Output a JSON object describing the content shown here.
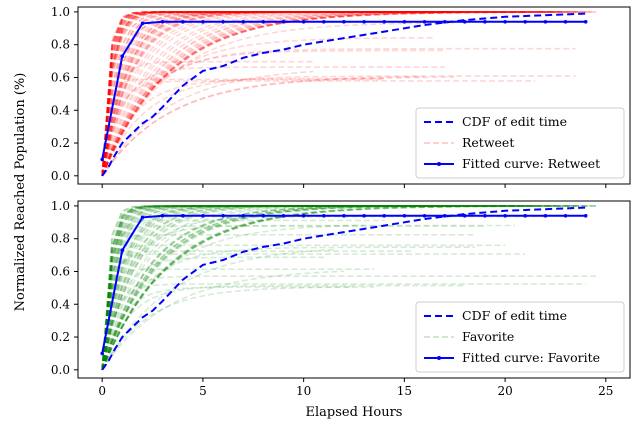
{
  "figure": {
    "xlabel": "Elapsed Hours",
    "ylabel": "Normalized Reached Population (%)"
  },
  "chart_data": [
    {
      "type": "line",
      "panel": "top",
      "xlim": [
        -1.2,
        26.2
      ],
      "ylim": [
        -0.05,
        1.03
      ],
      "xticks": [
        0,
        5,
        10,
        15,
        20,
        25
      ],
      "xticklabels_shown": false,
      "yticks": [
        0.0,
        0.2,
        0.4,
        0.6,
        0.8,
        1.0
      ],
      "ytick_labels": [
        "0.0",
        "0.2",
        "0.4",
        "0.6",
        "0.8",
        "1.0"
      ],
      "grid": false,
      "legend_position": "lower-right",
      "legend": [
        "CDF of edit time",
        "Retweet",
        "Fitted curve: Retweet"
      ],
      "background_color": "#ff0000",
      "series": [
        {
          "name": "CDF of edit time",
          "style": "dashed",
          "color": "#0000ff",
          "x": [
            0,
            0.3,
            0.6,
            1,
            1.5,
            2,
            2.5,
            3,
            4,
            5,
            6,
            7,
            8,
            9,
            10,
            11,
            12,
            13,
            14,
            15,
            16,
            18,
            20,
            22,
            24
          ],
          "y": [
            0.0,
            0.05,
            0.12,
            0.2,
            0.26,
            0.32,
            0.36,
            0.42,
            0.55,
            0.64,
            0.67,
            0.72,
            0.75,
            0.77,
            0.8,
            0.82,
            0.84,
            0.86,
            0.88,
            0.9,
            0.92,
            0.95,
            0.97,
            0.98,
            0.99
          ]
        },
        {
          "name": "Retweet",
          "style": "dashed",
          "color": "#ff0000",
          "sample_count": 90
        },
        {
          "name": "Fitted curve: Retweet",
          "style": "solid-marker",
          "color": "#0000ff",
          "x": [
            0,
            1,
            2,
            3,
            4,
            5,
            6,
            7,
            8,
            9,
            10,
            11,
            12,
            13,
            14,
            15,
            16,
            17,
            18,
            19,
            20,
            21,
            22,
            23,
            24
          ],
          "y": [
            0.1,
            0.73,
            0.93,
            0.94,
            0.94,
            0.94,
            0.94,
            0.94,
            0.94,
            0.94,
            0.94,
            0.94,
            0.94,
            0.94,
            0.94,
            0.94,
            0.94,
            0.94,
            0.94,
            0.94,
            0.94,
            0.94,
            0.94,
            0.94,
            0.94
          ]
        }
      ]
    },
    {
      "type": "line",
      "panel": "bottom",
      "xlim": [
        -1.2,
        26.2
      ],
      "ylim": [
        -0.05,
        1.03
      ],
      "xticks": [
        0,
        5,
        10,
        15,
        20,
        25
      ],
      "xtick_labels": [
        "0",
        "5",
        "10",
        "15",
        "20",
        "25"
      ],
      "yticks": [
        0.0,
        0.2,
        0.4,
        0.6,
        0.8,
        1.0
      ],
      "ytick_labels": [
        "0.0",
        "0.2",
        "0.4",
        "0.6",
        "0.8",
        "1.0"
      ],
      "grid": false,
      "legend_position": "lower-right",
      "legend": [
        "CDF of edit time",
        "Favorite",
        "Fitted curve: Favorite"
      ],
      "background_color": "#008000",
      "series": [
        {
          "name": "CDF of edit time",
          "style": "dashed",
          "color": "#0000ff",
          "x": [
            0,
            0.3,
            0.6,
            1,
            1.5,
            2,
            2.5,
            3,
            4,
            5,
            6,
            7,
            8,
            9,
            10,
            11,
            12,
            13,
            14,
            15,
            16,
            18,
            20,
            22,
            24
          ],
          "y": [
            0.0,
            0.05,
            0.12,
            0.2,
            0.26,
            0.32,
            0.36,
            0.42,
            0.55,
            0.64,
            0.67,
            0.72,
            0.75,
            0.77,
            0.8,
            0.82,
            0.84,
            0.86,
            0.88,
            0.9,
            0.92,
            0.95,
            0.97,
            0.98,
            0.99
          ]
        },
        {
          "name": "Favorite",
          "style": "dashed",
          "color": "#008000",
          "sample_count": 90
        },
        {
          "name": "Fitted curve: Favorite",
          "style": "solid-marker",
          "color": "#0000ff",
          "x": [
            0,
            1,
            2,
            3,
            4,
            5,
            6,
            7,
            8,
            9,
            10,
            11,
            12,
            13,
            14,
            15,
            16,
            17,
            18,
            19,
            20,
            21,
            22,
            23,
            24
          ],
          "y": [
            0.1,
            0.73,
            0.93,
            0.94,
            0.94,
            0.94,
            0.94,
            0.94,
            0.94,
            0.94,
            0.94,
            0.94,
            0.94,
            0.94,
            0.94,
            0.94,
            0.94,
            0.94,
            0.94,
            0.94,
            0.94,
            0.94,
            0.94,
            0.94,
            0.94
          ]
        }
      ]
    }
  ]
}
